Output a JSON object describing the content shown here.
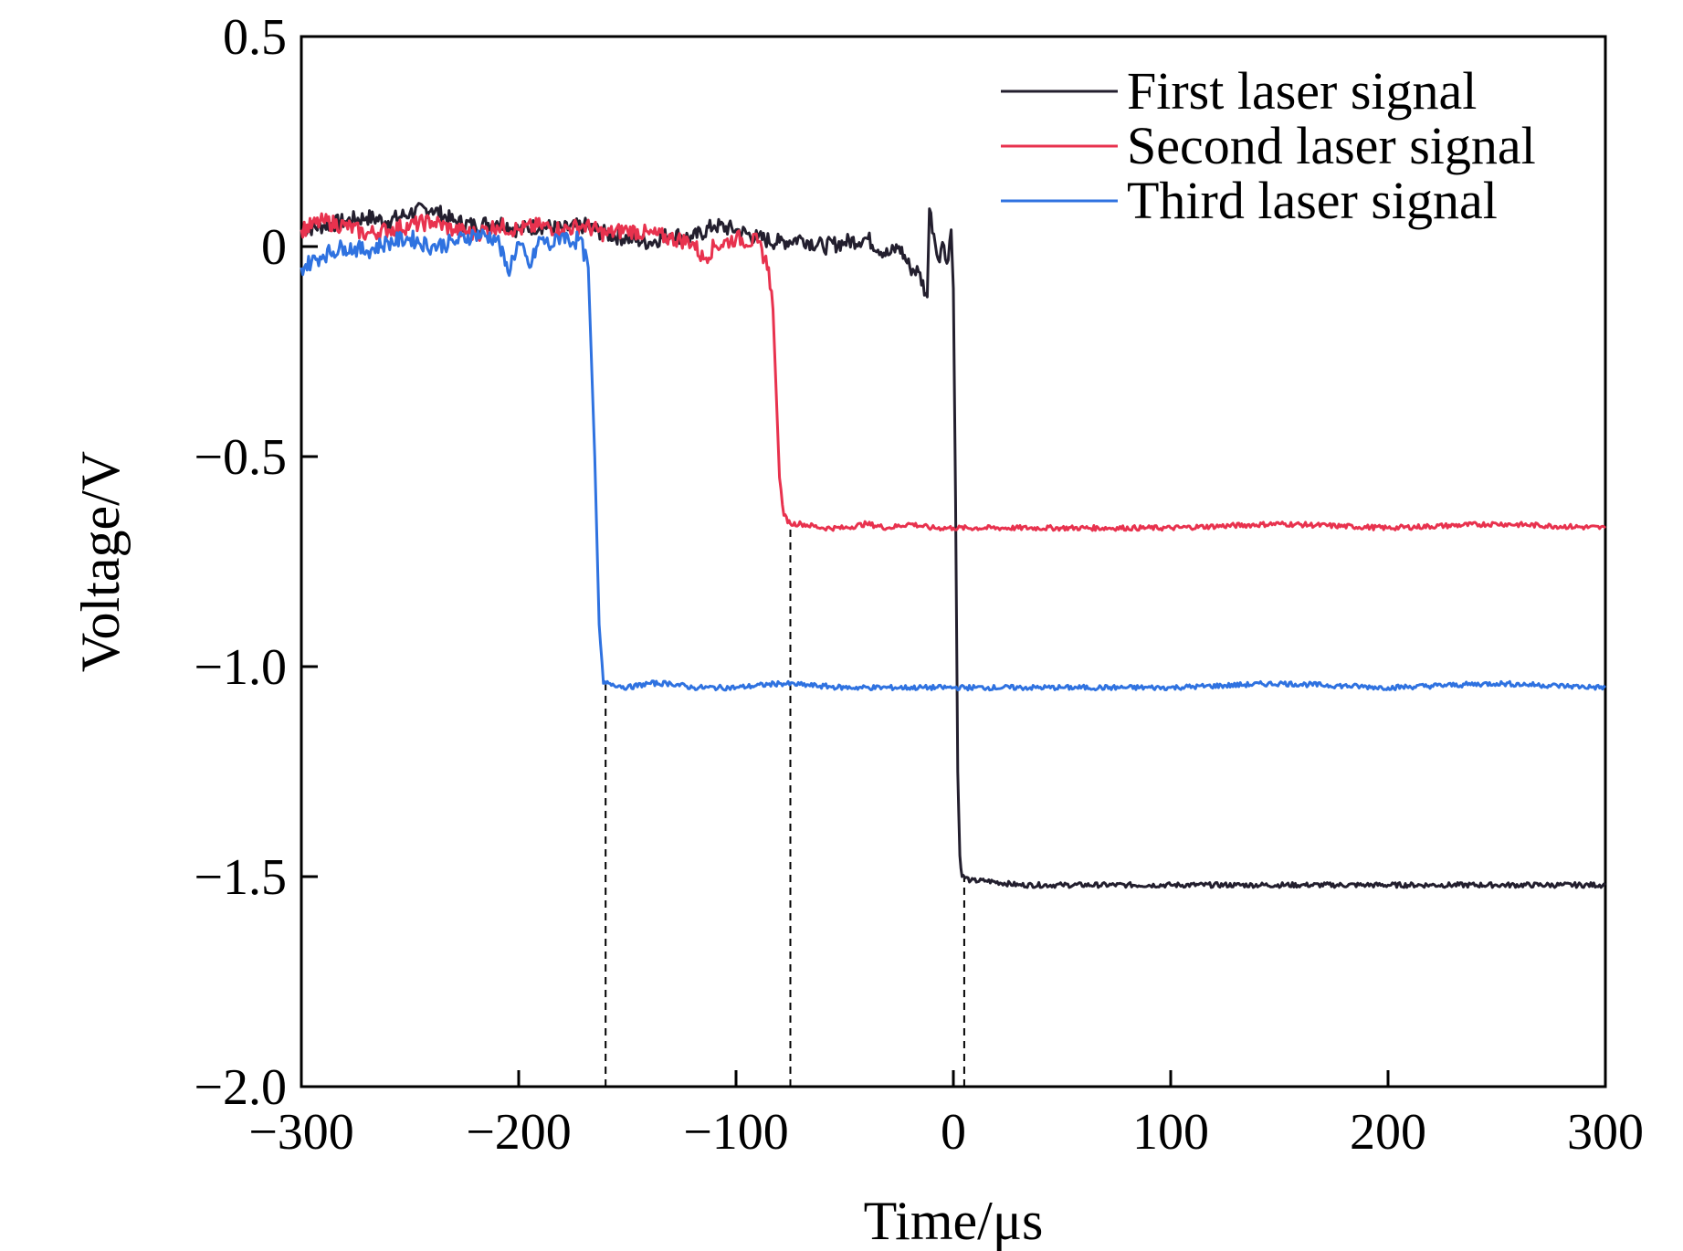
{
  "chart_data": {
    "type": "line",
    "title": "",
    "xlabel": "Time/μs",
    "ylabel": "Voltage/V",
    "xlim": [
      -300,
      300
    ],
    "ylim": [
      -2.0,
      0.5
    ],
    "xticks": [
      -300,
      -200,
      -100,
      0,
      100,
      200,
      300
    ],
    "xtick_labels": [
      "−300",
      "−200",
      "−100",
      "0",
      "100",
      "200",
      "300"
    ],
    "yticks": [
      0.5,
      0,
      -0.5,
      -1.0,
      -1.5,
      -2.0
    ],
    "ytick_labels": [
      "0.5",
      "0",
      "−0.5",
      "−1.0",
      "−1.5",
      "−2.0"
    ],
    "grid": false,
    "legend_position": "top-right",
    "series": [
      {
        "name": "First laser signal",
        "color": "#231f2e",
        "x": [
          -300,
          -290,
          -280,
          -270,
          -260,
          -250,
          -240,
          -230,
          -220,
          -210,
          -200,
          -190,
          -180,
          -170,
          -160,
          -150,
          -140,
          -130,
          -120,
          -110,
          -100,
          -90,
          -80,
          -70,
          -60,
          -50,
          -40,
          -30,
          -25,
          -20,
          -16,
          -12,
          -11,
          -9,
          -7,
          -5,
          -3,
          -1,
          0,
          1,
          2,
          3,
          4,
          5,
          8,
          15,
          30,
          50,
          80,
          100,
          130,
          160,
          190,
          220,
          250,
          280,
          300
        ],
        "y": [
          0.04,
          0.05,
          0.06,
          0.07,
          0.06,
          0.08,
          0.09,
          0.06,
          0.05,
          0.06,
          0.04,
          0.05,
          0.04,
          0.05,
          0.03,
          0.02,
          0.01,
          0.03,
          0.02,
          0.05,
          0.04,
          0.02,
          0.01,
          0.02,
          0.0,
          0.01,
          0.02,
          -0.02,
          0.0,
          -0.05,
          -0.06,
          -0.12,
          0.09,
          0.03,
          -0.03,
          0.01,
          -0.04,
          0.04,
          -0.1,
          -0.6,
          -1.25,
          -1.45,
          -1.5,
          -1.5,
          -1.51,
          -1.51,
          -1.52,
          -1.52,
          -1.52,
          -1.52,
          -1.52,
          -1.52,
          -1.52,
          -1.52,
          -1.52,
          -1.52,
          -1.52
        ]
      },
      {
        "name": "Second laser signal",
        "color": "#e8324e",
        "x": [
          -300,
          -290,
          -280,
          -270,
          -260,
          -250,
          -240,
          -230,
          -220,
          -210,
          -200,
          -190,
          -180,
          -170,
          -160,
          -150,
          -140,
          -130,
          -120,
          -115,
          -110,
          -100,
          -90,
          -85,
          -83,
          -80,
          -78,
          -75,
          -70,
          -60,
          -50,
          -40,
          -30,
          -20,
          -10,
          0,
          50,
          100,
          150,
          200,
          250,
          300
        ],
        "y": [
          0.04,
          0.06,
          0.05,
          0.03,
          0.04,
          0.05,
          0.06,
          0.04,
          0.03,
          0.05,
          0.04,
          0.05,
          0.04,
          0.05,
          0.03,
          0.04,
          0.03,
          0.02,
          0.01,
          -0.03,
          0.0,
          0.02,
          0.01,
          -0.05,
          -0.15,
          -0.55,
          -0.64,
          -0.66,
          -0.66,
          -0.67,
          -0.67,
          -0.66,
          -0.67,
          -0.66,
          -0.67,
          -0.67,
          -0.67,
          -0.67,
          -0.66,
          -0.67,
          -0.66,
          -0.67
        ]
      },
      {
        "name": "Third laser signal",
        "color": "#2f72e0",
        "x": [
          -300,
          -290,
          -280,
          -270,
          -260,
          -250,
          -240,
          -230,
          -220,
          -210,
          -205,
          -200,
          -195,
          -190,
          -185,
          -180,
          -175,
          -172,
          -168,
          -165,
          -163,
          -161,
          -158,
          -150,
          -140,
          -130,
          -120,
          -100,
          -80,
          -50,
          0,
          50,
          100,
          150,
          200,
          250,
          300
        ],
        "y": [
          -0.05,
          -0.02,
          0.0,
          -0.01,
          0.01,
          0.02,
          0.0,
          0.01,
          0.03,
          0.02,
          -0.06,
          0.01,
          -0.05,
          0.02,
          0.0,
          0.03,
          0.01,
          0.02,
          -0.05,
          -0.5,
          -0.9,
          -1.04,
          -1.04,
          -1.05,
          -1.04,
          -1.04,
          -1.05,
          -1.05,
          -1.04,
          -1.05,
          -1.05,
          -1.05,
          -1.05,
          -1.04,
          -1.05,
          -1.04,
          -1.05
        ]
      }
    ],
    "annotations": [
      {
        "type": "vline-dashed",
        "x": -160,
        "y_from": -2.0,
        "y_to": -1.04
      },
      {
        "type": "vline-dashed",
        "x": -75,
        "y_from": -2.0,
        "y_to": -0.66
      },
      {
        "type": "vline-dashed",
        "x": 5,
        "y_from": -2.0,
        "y_to": -1.5
      }
    ]
  }
}
